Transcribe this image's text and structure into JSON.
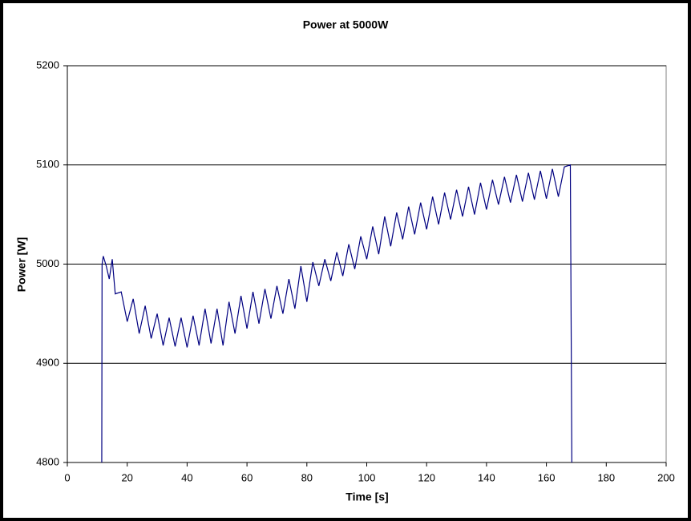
{
  "chart_data": {
    "type": "line",
    "title": "Power at 5000W",
    "xlabel": "Time [s]",
    "ylabel": "Power [W]",
    "x": [
      11.5,
      11.6,
      12,
      13,
      14,
      15,
      16,
      18,
      20,
      22,
      24,
      26,
      28,
      30,
      32,
      34,
      36,
      38,
      40,
      42,
      44,
      46,
      48,
      50,
      52,
      54,
      56,
      58,
      60,
      62,
      64,
      66,
      68,
      70,
      72,
      74,
      76,
      78,
      80,
      82,
      84,
      86,
      88,
      90,
      92,
      94,
      96,
      98,
      100,
      102,
      104,
      106,
      108,
      110,
      112,
      114,
      116,
      118,
      120,
      122,
      124,
      126,
      128,
      130,
      132,
      134,
      136,
      138,
      140,
      142,
      144,
      146,
      148,
      150,
      152,
      154,
      156,
      158,
      160,
      162,
      164,
      166,
      168,
      168.5
    ],
    "series": [
      {
        "color": "#000080",
        "values": [
          4800,
          5000,
          5008,
          4998,
          4985,
          5005,
          4970,
          4972,
          4942,
          4965,
          4930,
          4958,
          4925,
          4950,
          4918,
          4946,
          4917,
          4946,
          4916,
          4948,
          4918,
          4955,
          4920,
          4955,
          4918,
          4962,
          4930,
          4968,
          4935,
          4972,
          4940,
          4975,
          4945,
          4978,
          4950,
          4985,
          4955,
          4998,
          4962,
          5002,
          4978,
          5005,
          4983,
          5012,
          4988,
          5020,
          4995,
          5028,
          5005,
          5038,
          5010,
          5048,
          5018,
          5052,
          5025,
          5058,
          5030,
          5062,
          5035,
          5068,
          5040,
          5072,
          5045,
          5075,
          5048,
          5078,
          5050,
          5082,
          5055,
          5085,
          5060,
          5088,
          5062,
          5090,
          5063,
          5092,
          5065,
          5094,
          5066,
          5096,
          5068,
          5098,
          5100,
          4800
        ]
      }
    ],
    "xlim": [
      0,
      200
    ],
    "xticks": [
      0,
      20,
      40,
      60,
      80,
      100,
      120,
      140,
      160,
      180,
      200
    ],
    "ylim": [
      4800,
      5200
    ],
    "yticks": [
      4800,
      4900,
      5000,
      5100,
      5200
    ],
    "grid": true
  }
}
